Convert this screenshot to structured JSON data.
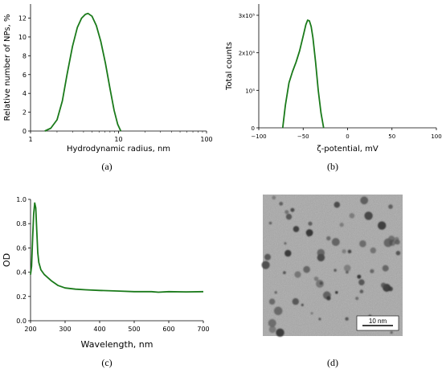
{
  "figure": {
    "captions": {
      "a": "(a)",
      "b": "(b)",
      "c": "(c)",
      "d": "(d)"
    }
  },
  "chart_data": [
    {
      "panel": "a",
      "type": "line",
      "title": "",
      "xlabel": "Hydrodynamic radius, nm",
      "ylabel": "Relative number of NPs, %",
      "xscale": "log",
      "xlim": [
        1,
        100
      ],
      "ylim": [
        0,
        13.5
      ],
      "xticks": [
        1,
        10,
        100
      ],
      "xtick_labels": [
        "1",
        "10",
        "100"
      ],
      "yticks": [
        0,
        2,
        4,
        6,
        8,
        10,
        12
      ],
      "ytick_labels": [
        "0",
        "2",
        "4",
        "6",
        "8",
        "10",
        "12"
      ],
      "grid": false,
      "color": "#1a7a1a",
      "series": [
        {
          "x": [
            1.45,
            1.7,
            2.0,
            2.3,
            2.6,
            3.0,
            3.4,
            3.8,
            4.2,
            4.5,
            5.0,
            5.6,
            6.3,
            7.1,
            8.0,
            8.9,
            9.8,
            10.6
          ],
          "y": [
            0,
            0.3,
            1.2,
            3.2,
            6.0,
            9.0,
            11.0,
            12.0,
            12.4,
            12.5,
            12.2,
            11.2,
            9.5,
            7.2,
            4.5,
            2.2,
            0.7,
            0
          ]
        }
      ]
    },
    {
      "panel": "b",
      "type": "line",
      "title": "",
      "xlabel": "ζ-potential, mV",
      "ylabel": "Total counts",
      "xlim": [
        -100,
        100
      ],
      "ylim": [
        0,
        330000
      ],
      "xticks": [
        -100,
        -50,
        0,
        50,
        100
      ],
      "xtick_labels": [
        "−100",
        "−50",
        "0",
        "50",
        "100"
      ],
      "yticks": [
        0,
        100000,
        200000,
        300000
      ],
      "ytick_labels": [
        "0",
        "10⁵",
        "2x10⁵",
        "3x10⁵"
      ],
      "grid": false,
      "color": "#1a7a1a",
      "series": [
        {
          "x": [
            -73,
            -70,
            -66,
            -62,
            -58,
            -54,
            -50,
            -47,
            -45,
            -43,
            -41,
            -39,
            -36,
            -33,
            -30,
            -27
          ],
          "y": [
            0,
            60000,
            120000,
            150000,
            175000,
            205000,
            245000,
            275000,
            287000,
            285000,
            270000,
            240000,
            175000,
            100000,
            40000,
            0
          ]
        }
      ]
    },
    {
      "panel": "c",
      "type": "line",
      "title": "",
      "xlabel": "Wavelength, nm",
      "ylabel": "OD",
      "xlim": [
        200,
        700
      ],
      "ylim": [
        0,
        1.0
      ],
      "xticks": [
        200,
        300,
        400,
        500,
        600,
        700
      ],
      "xtick_labels": [
        "200",
        "300",
        "400",
        "500",
        "600",
        "700"
      ],
      "yticks": [
        0,
        0.2,
        0.4,
        0.6,
        0.8,
        1.0
      ],
      "ytick_labels": [
        "0.0",
        "0.2",
        "0.4",
        "0.6",
        "0.8",
        "1.0"
      ],
      "grid": false,
      "color": "#1a7a1a",
      "series": [
        {
          "x": [
            200,
            203,
            206,
            209,
            212,
            215,
            218,
            221,
            224,
            230,
            240,
            260,
            280,
            300,
            330,
            360,
            400,
            450,
            500,
            550,
            570,
            600,
            650,
            700
          ],
          "y": [
            0.38,
            0.45,
            0.68,
            0.88,
            0.97,
            0.93,
            0.75,
            0.56,
            0.48,
            0.42,
            0.38,
            0.33,
            0.29,
            0.27,
            0.26,
            0.255,
            0.25,
            0.245,
            0.24,
            0.24,
            0.235,
            0.24,
            0.238,
            0.24
          ]
        }
      ]
    }
  ],
  "micrograph": {
    "scale_bar_label": "10 nm"
  }
}
